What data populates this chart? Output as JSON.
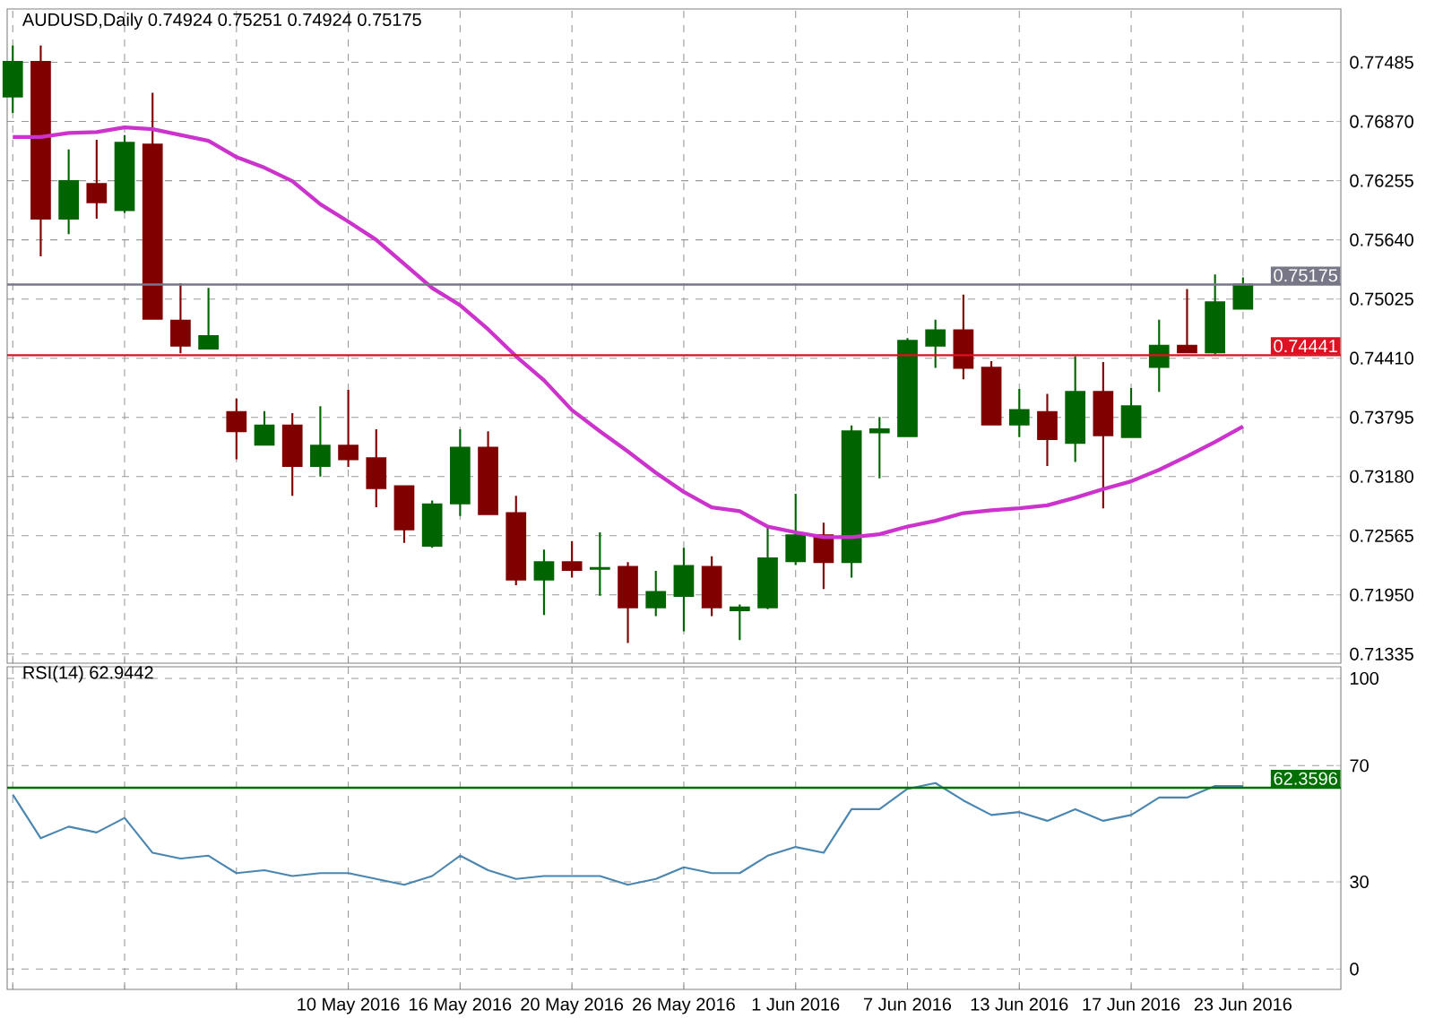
{
  "chart_data": [
    {
      "type": "candlestick",
      "title": "AUDUSD,Daily 0.74924 0.75251 0.74924 0.75175",
      "categories": [
        null,
        null,
        null,
        null,
        null,
        null,
        null,
        null,
        null,
        null,
        null,
        null,
        null,
        null,
        null,
        null,
        null,
        null,
        null,
        null,
        null,
        null,
        null,
        null,
        null,
        null,
        null,
        null,
        null,
        null,
        null,
        null,
        null,
        null,
        null,
        null,
        null,
        null,
        null,
        null,
        null,
        null,
        null,
        null,
        null
      ],
      "ohlc": [
        [
          0.7713,
          0.7766,
          0.7696,
          0.7749
        ],
        [
          0.7749,
          0.7766,
          0.7547,
          0.7586
        ],
        [
          0.7586,
          0.7658,
          0.757,
          0.7625
        ],
        [
          0.7622,
          0.7668,
          0.7586,
          0.7603
        ],
        [
          0.7595,
          0.7673,
          0.7592,
          0.7665
        ],
        [
          0.7663,
          0.7717,
          0.7482,
          0.7482
        ],
        [
          0.748,
          0.7519,
          0.7446,
          0.7454
        ],
        [
          0.7451,
          0.7514,
          0.7451,
          0.7464
        ],
        [
          0.7385,
          0.7399,
          0.7336,
          0.7365
        ],
        [
          0.7351,
          0.7386,
          0.735,
          0.7371
        ],
        [
          0.7371,
          0.7384,
          0.7298,
          0.7329
        ],
        [
          0.7329,
          0.7391,
          0.7318,
          0.735
        ],
        [
          0.735,
          0.7408,
          0.7328,
          0.7336
        ],
        [
          0.7337,
          0.7367,
          0.7286,
          0.7306
        ],
        [
          0.7308,
          0.7308,
          0.7249,
          0.7263
        ],
        [
          0.7246,
          0.7293,
          0.7244,
          0.7289
        ],
        [
          0.729,
          0.7367,
          0.7277,
          0.7348
        ],
        [
          0.7348,
          0.7365,
          0.7279,
          0.7279
        ],
        [
          0.728,
          0.7298,
          0.7205,
          0.7211
        ],
        [
          0.7211,
          0.7242,
          0.7174,
          0.7229
        ],
        [
          0.7229,
          0.7251,
          0.7213,
          0.7221
        ],
        [
          0.7222,
          0.726,
          0.7194,
          0.7223
        ],
        [
          0.7224,
          0.7229,
          0.7145,
          0.7182
        ],
        [
          0.7182,
          0.722,
          0.7173,
          0.7198
        ],
        [
          0.7194,
          0.7244,
          0.7157,
          0.7225
        ],
        [
          0.7224,
          0.7235,
          0.7173,
          0.7182
        ],
        [
          0.7179,
          0.7185,
          0.7148,
          0.7182
        ],
        [
          0.7182,
          0.7266,
          0.718,
          0.7233
        ],
        [
          0.723,
          0.73,
          0.7226,
          0.7257
        ],
        [
          0.7257,
          0.727,
          0.7201,
          0.7229
        ],
        [
          0.7229,
          0.7371,
          0.7213,
          0.7365
        ],
        [
          0.7364,
          0.738,
          0.7316,
          0.7367
        ],
        [
          0.736,
          0.7462,
          0.7359,
          0.7459
        ],
        [
          0.7454,
          0.7481,
          0.7431,
          0.747
        ],
        [
          0.747,
          0.7507,
          0.7419,
          0.7431
        ],
        [
          0.7431,
          0.7438,
          0.7371,
          0.7372
        ],
        [
          0.7372,
          0.7409,
          0.7359,
          0.7387
        ],
        [
          0.7385,
          0.7404,
          0.7329,
          0.7357
        ],
        [
          0.7353,
          0.7443,
          0.7333,
          0.7406
        ],
        [
          0.7406,
          0.7437,
          0.7285,
          0.7361
        ],
        [
          0.7359,
          0.741,
          0.7358,
          0.7391
        ],
        [
          0.7432,
          0.7481,
          0.7406,
          0.7454
        ],
        [
          0.7454,
          0.7513,
          0.7446,
          0.7447
        ],
        [
          0.7447,
          0.7528,
          0.7445,
          0.7499
        ],
        [
          0.74924,
          0.75251,
          0.74924,
          0.75175
        ]
      ],
      "colors": [
        "#006400",
        "#800000",
        "#006400",
        "#800000",
        "#006400",
        "#800000",
        "#800000",
        "#006400",
        "#800000",
        "#006400",
        "#800000",
        "#006400",
        "#800000",
        "#800000",
        "#800000",
        "#006400",
        "#006400",
        "#800000",
        "#800000",
        "#006400",
        "#800000",
        "#006400",
        "#800000",
        "#006400",
        "#006400",
        "#800000",
        "#006400",
        "#006400",
        "#006400",
        "#800000",
        "#006400",
        "#006400",
        "#006400",
        "#006400",
        "#800000",
        "#800000",
        "#006400",
        "#800000",
        "#006400",
        "#800000",
        "#006400",
        "#006400",
        "#800000",
        "#006400",
        "#006400"
      ],
      "series": [
        {
          "type": "line",
          "color": "#cc33cc",
          "values": [
            0.7671,
            0.7671,
            0.7675,
            0.7676,
            0.7681,
            0.7679,
            0.7673,
            0.7667,
            0.765,
            0.7639,
            0.7625,
            0.7601,
            0.7583,
            0.7564,
            0.7539,
            0.7514,
            0.7496,
            0.7471,
            0.7443,
            0.7418,
            0.7387,
            0.7365,
            0.7344,
            0.7322,
            0.7302,
            0.7286,
            0.7282,
            0.7266,
            0.726,
            0.7255,
            0.7255,
            0.7258,
            0.7266,
            0.7272,
            0.728,
            0.7283,
            0.7285,
            0.7288,
            0.7296,
            0.7305,
            0.7313,
            0.7325,
            0.7339,
            0.7354,
            0.737
          ]
        }
      ],
      "ref_lines": [
        {
          "axis": "y",
          "value": 0.74441,
          "label": "0.74441",
          "color": "#dd1122"
        },
        {
          "axis": "y",
          "value": 0.75175,
          "label": "0.75175",
          "color": "#777788"
        }
      ],
      "ylim": [
        0.7124,
        0.7804
      ],
      "yticks": [
        0.77485,
        {
          "value": 0.7687,
          "label": "0.76870"
        },
        0.76255,
        {
          "value": 0.7564,
          "label": "0.75640"
        },
        0.75025,
        {
          "value": 0.7441,
          "label": "0.74410"
        },
        0.73795,
        {
          "value": 0.7318,
          "label": "0.73180"
        },
        0.72565,
        {
          "value": 0.7195,
          "label": "0.71950"
        },
        0.71335
      ],
      "grid": true,
      "marker": "none",
      "tick_labels": "y"
    },
    {
      "type": "line",
      "title": "RSI(14) 62.9442",
      "categories": [
        null,
        null,
        null,
        null,
        null,
        null,
        null,
        null,
        null,
        null,
        null,
        null,
        "10 May 2016",
        null,
        null,
        null,
        "16 May 2016",
        null,
        null,
        null,
        "20 May 2016",
        null,
        null,
        null,
        "26 May 2016",
        null,
        null,
        null,
        "1 Jun 2016",
        null,
        null,
        null,
        "7 Jun 2016",
        null,
        null,
        null,
        "13 Jun 2016",
        null,
        null,
        null,
        "17 Jun 2016",
        null,
        null,
        null,
        "23 Jun 2016"
      ],
      "series": [
        {
          "color": "#4a86b0",
          "values": [
            60,
            45,
            49,
            47,
            52,
            40,
            38,
            39,
            33,
            34,
            32,
            33,
            33,
            31,
            29,
            32,
            39,
            34,
            31,
            32,
            32,
            32,
            29,
            31,
            35,
            33,
            33,
            39,
            42,
            40,
            55,
            55,
            62,
            64,
            58,
            53,
            54,
            51,
            55,
            51,
            53,
            59,
            59,
            63,
            63
          ]
        }
      ],
      "ref_lines": [
        {
          "axis": "y",
          "value": 62.3596,
          "label": "62.3596",
          "color": "#007000"
        }
      ],
      "ylim": [
        -7,
        104
      ],
      "yticks": [
        0,
        30,
        70,
        100
      ],
      "grid": true,
      "marker": "none"
    }
  ]
}
